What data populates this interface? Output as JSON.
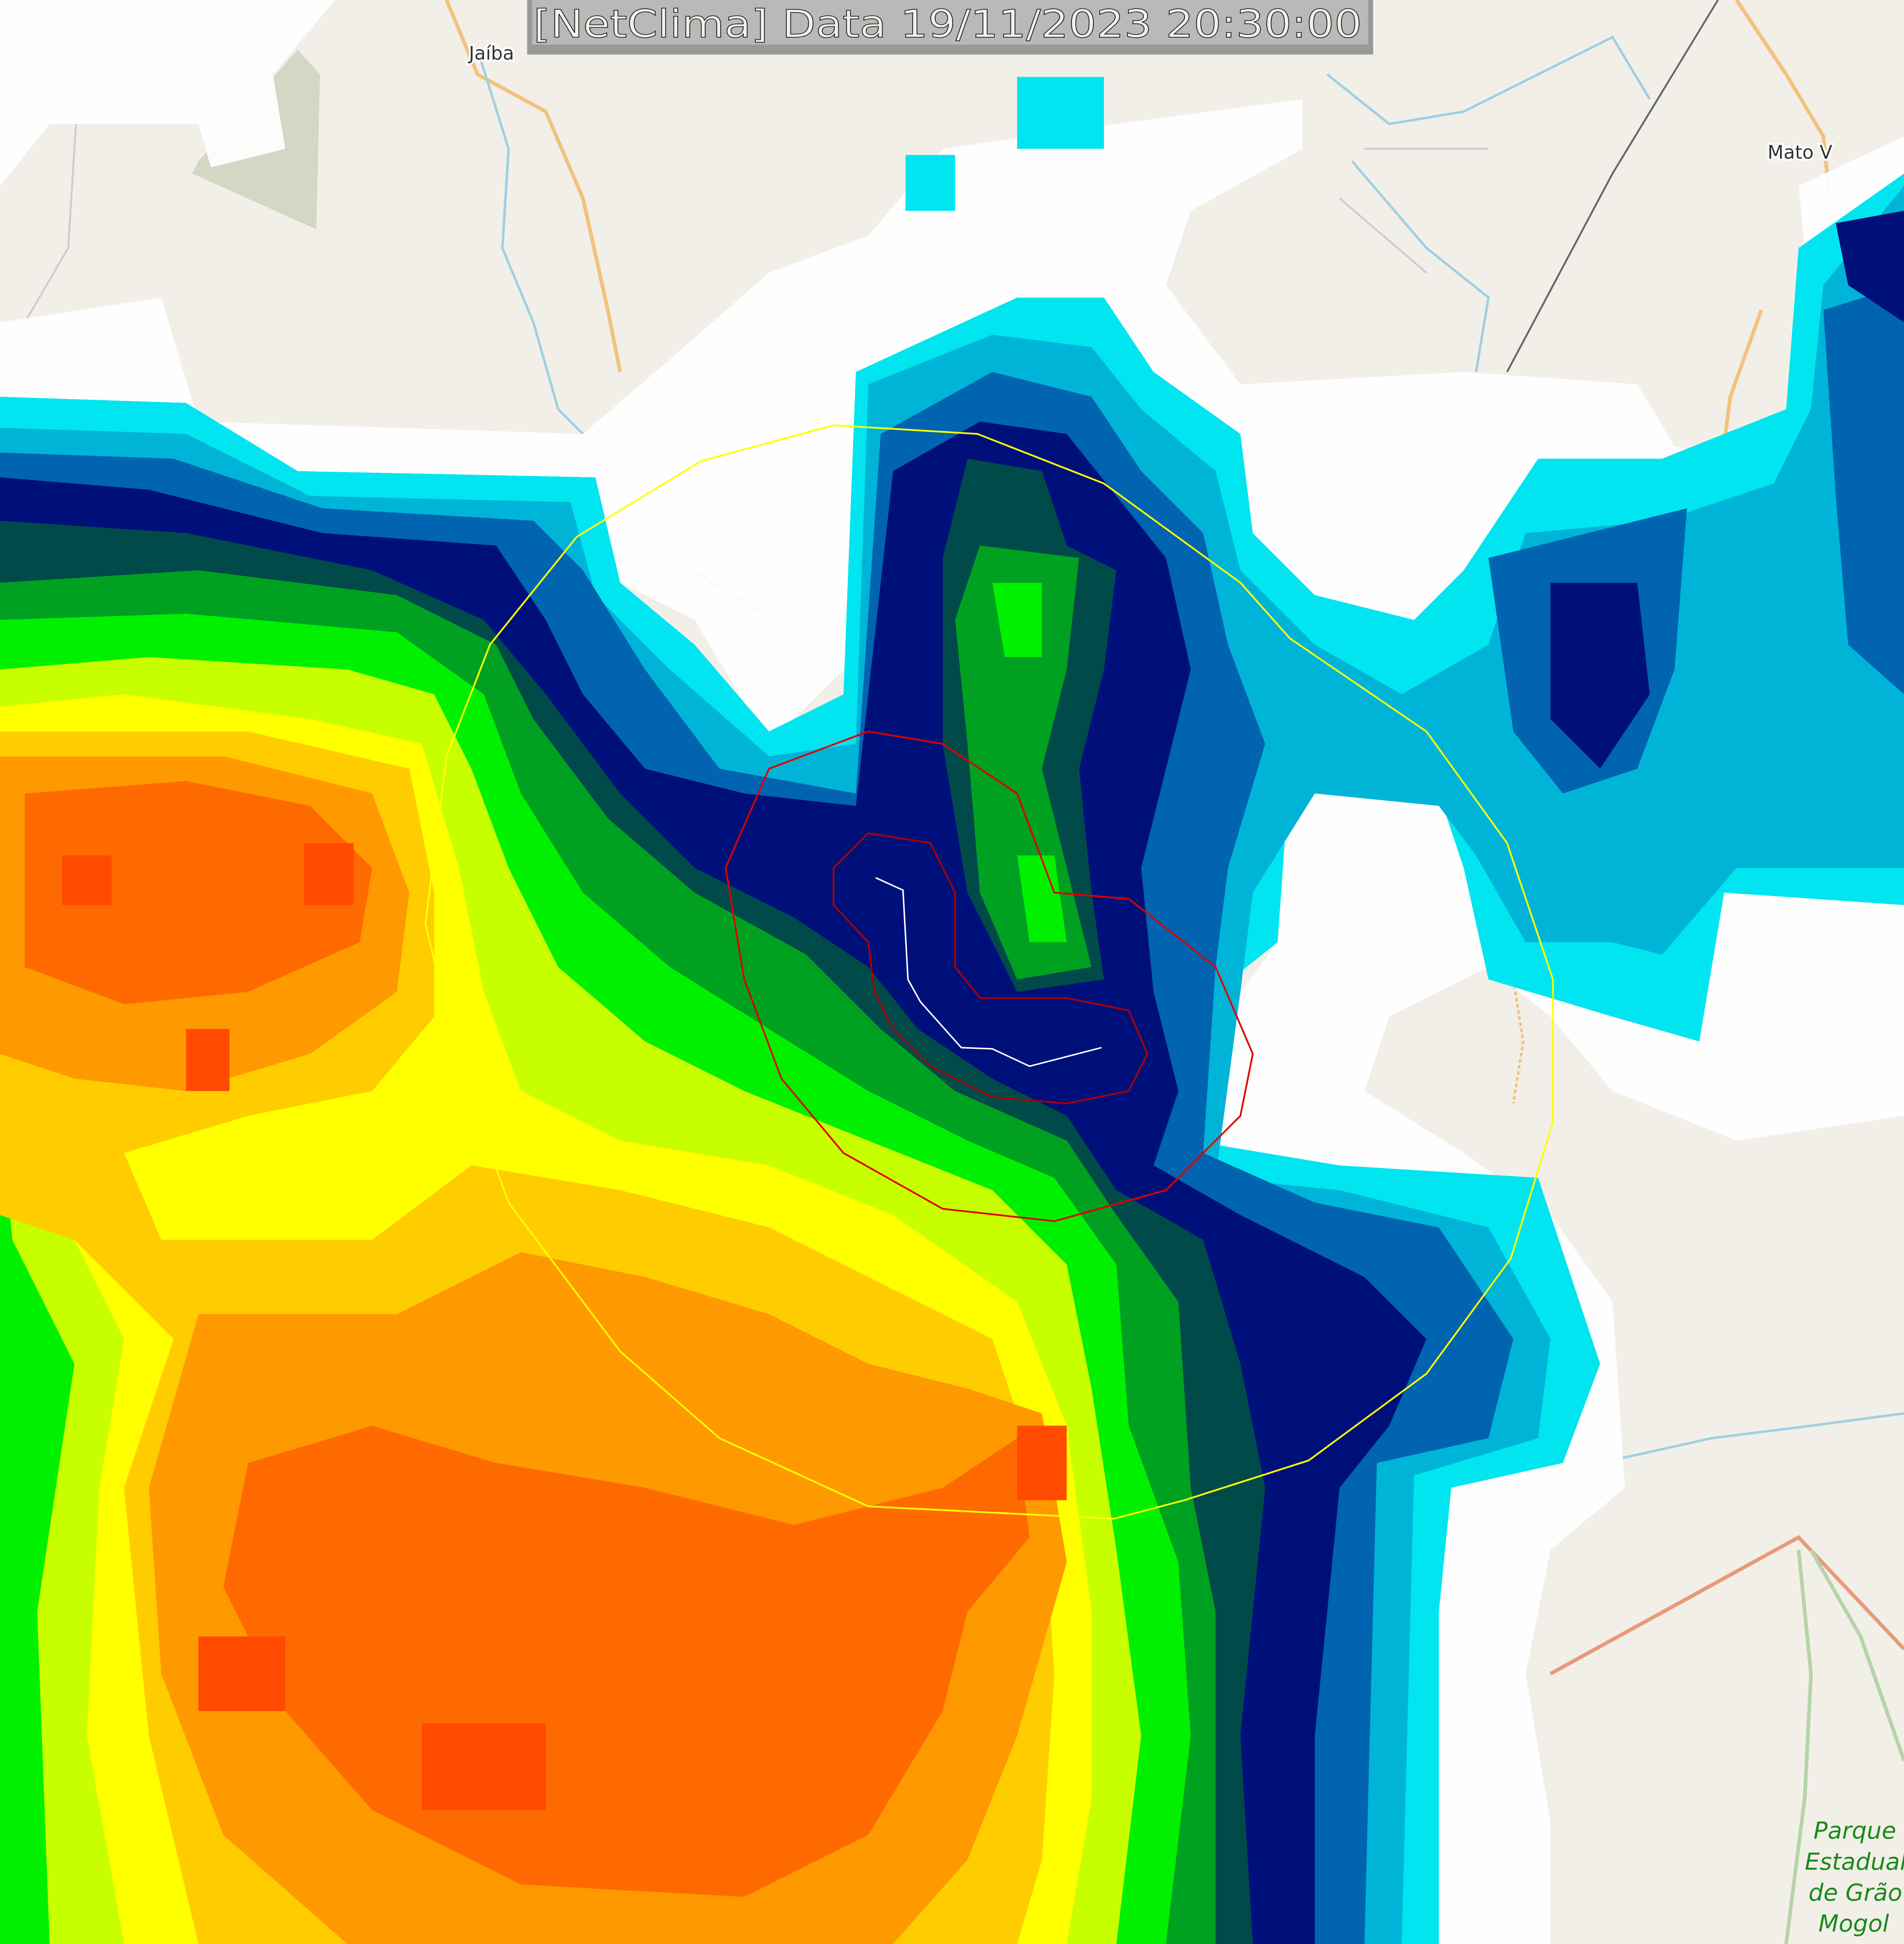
{
  "title": "[NetClima] Data 19/11/2023 20:30:00",
  "places": {
    "jaiba": "Jaíba",
    "mato_verde": "Mato V",
    "park_line1": "Parque",
    "park_line2": "Estadual",
    "park_line3": "de Grão",
    "park_line4": "Mogol"
  },
  "colors": {
    "basemap": "#f2efe9",
    "cloud_white": "#ffffff",
    "cyan": "#00e5ef",
    "light_blue": "#00b4d8",
    "blue": "#0064b0",
    "navy": "#00107a",
    "dark_teal": "#004a4a",
    "green": "#00a020",
    "bright_green": "#00f000",
    "yellow_green": "#c8ff00",
    "yellow": "#ffff00",
    "gold": "#ffcc00",
    "orange": "#ff9900",
    "dark_orange": "#ff6a00",
    "red_orange": "#ff4a00",
    "outer_ring": "#ffff00",
    "inner_ring": "#dd0000",
    "track": "#ffffff"
  }
}
